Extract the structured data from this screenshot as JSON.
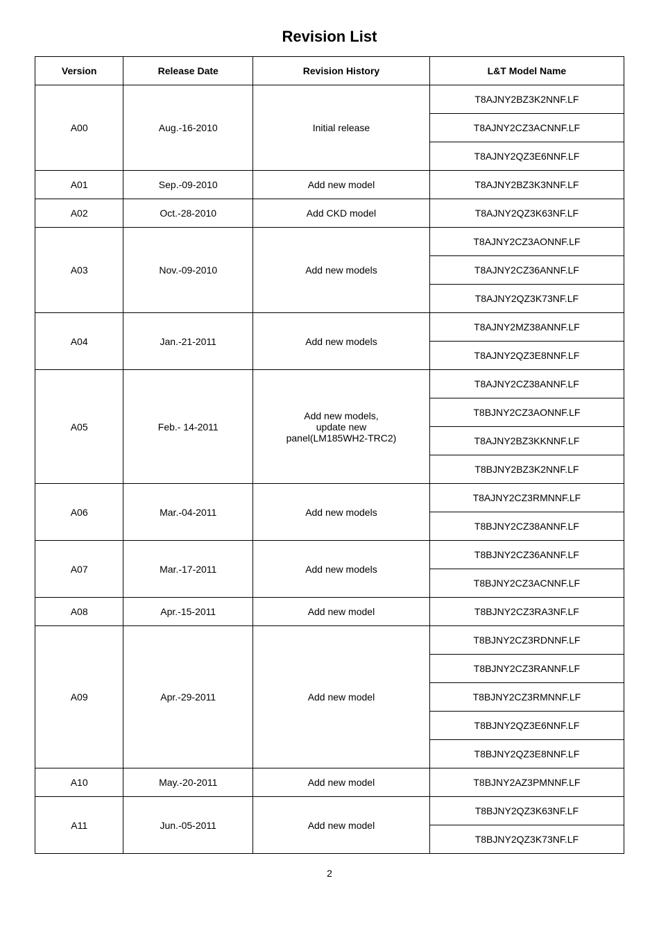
{
  "title": "Revision List",
  "headers": [
    "Version",
    "Release Date",
    "Revision History",
    "L&T Model Name"
  ],
  "groups": [
    {
      "version": "A00",
      "date": "Aug.-16-2010",
      "history": "Initial release",
      "models": [
        "T8AJNY2BZ3K2NNF.LF",
        "T8AJNY2CZ3ACNNF.LF",
        "T8AJNY2QZ3E6NNF.LF"
      ]
    },
    {
      "version": "A01",
      "date": "Sep.-09-2010",
      "history": "Add new model",
      "models": [
        "T8AJNY2BZ3K3NNF.LF"
      ]
    },
    {
      "version": "A02",
      "date": "Oct.-28-2010",
      "history": "Add CKD model",
      "models": [
        "T8AJNY2QZ3K63NF.LF"
      ]
    },
    {
      "version": "A03",
      "date": "Nov.-09-2010",
      "history": "Add new models",
      "models": [
        "T8AJNY2CZ3AONNF.LF",
        "T8AJNY2CZ36ANNF.LF",
        "T8AJNY2QZ3K73NF.LF"
      ]
    },
    {
      "version": "A04",
      "date": "Jan.-21-2011",
      "history": "Add new models",
      "models": [
        "T8AJNY2MZ38ANNF.LF",
        "T8AJNY2QZ3E8NNF.LF"
      ]
    },
    {
      "version": "A05",
      "date": "Feb.- 14-2011",
      "history": "Add new models,\nupdate new\npanel(LM185WH2-TRC2)",
      "models": [
        "T8AJNY2CZ38ANNF.LF",
        "T8BJNY2CZ3AONNF.LF",
        "T8AJNY2BZ3KKNNF.LF",
        "T8BJNY2BZ3K2NNF.LF"
      ]
    },
    {
      "version": "A06",
      "date": "Mar.-04-2011",
      "history": "Add new models",
      "models": [
        "T8AJNY2CZ3RMNNF.LF",
        "T8BJNY2CZ38ANNF.LF"
      ]
    },
    {
      "version": "A07",
      "date": "Mar.-17-2011",
      "history": "Add new models",
      "models": [
        "T8BJNY2CZ36ANNF.LF",
        "T8BJNY2CZ3ACNNF.LF"
      ]
    },
    {
      "version": "A08",
      "date": "Apr.-15-2011",
      "history": "Add new model",
      "models": [
        "T8BJNY2CZ3RA3NF.LF"
      ]
    },
    {
      "version": "A09",
      "date": "Apr.-29-2011",
      "history": "Add new model",
      "models": [
        "T8BJNY2CZ3RDNNF.LF",
        "T8BJNY2CZ3RANNF.LF",
        "T8BJNY2CZ3RMNNF.LF",
        "T8BJNY2QZ3E6NNF.LF",
        "T8BJNY2QZ3E8NNF.LF"
      ]
    },
    {
      "version": "A10",
      "date": "May.-20-2011",
      "history": "Add new model",
      "models": [
        "T8BJNY2AZ3PMNNF.LF"
      ]
    },
    {
      "version": "A11",
      "date": "Jun.-05-2011",
      "history": "Add new model",
      "models": [
        "T8BJNY2QZ3K63NF.LF",
        "T8BJNY2QZ3K73NF.LF"
      ]
    }
  ],
  "pageNumber": "2"
}
